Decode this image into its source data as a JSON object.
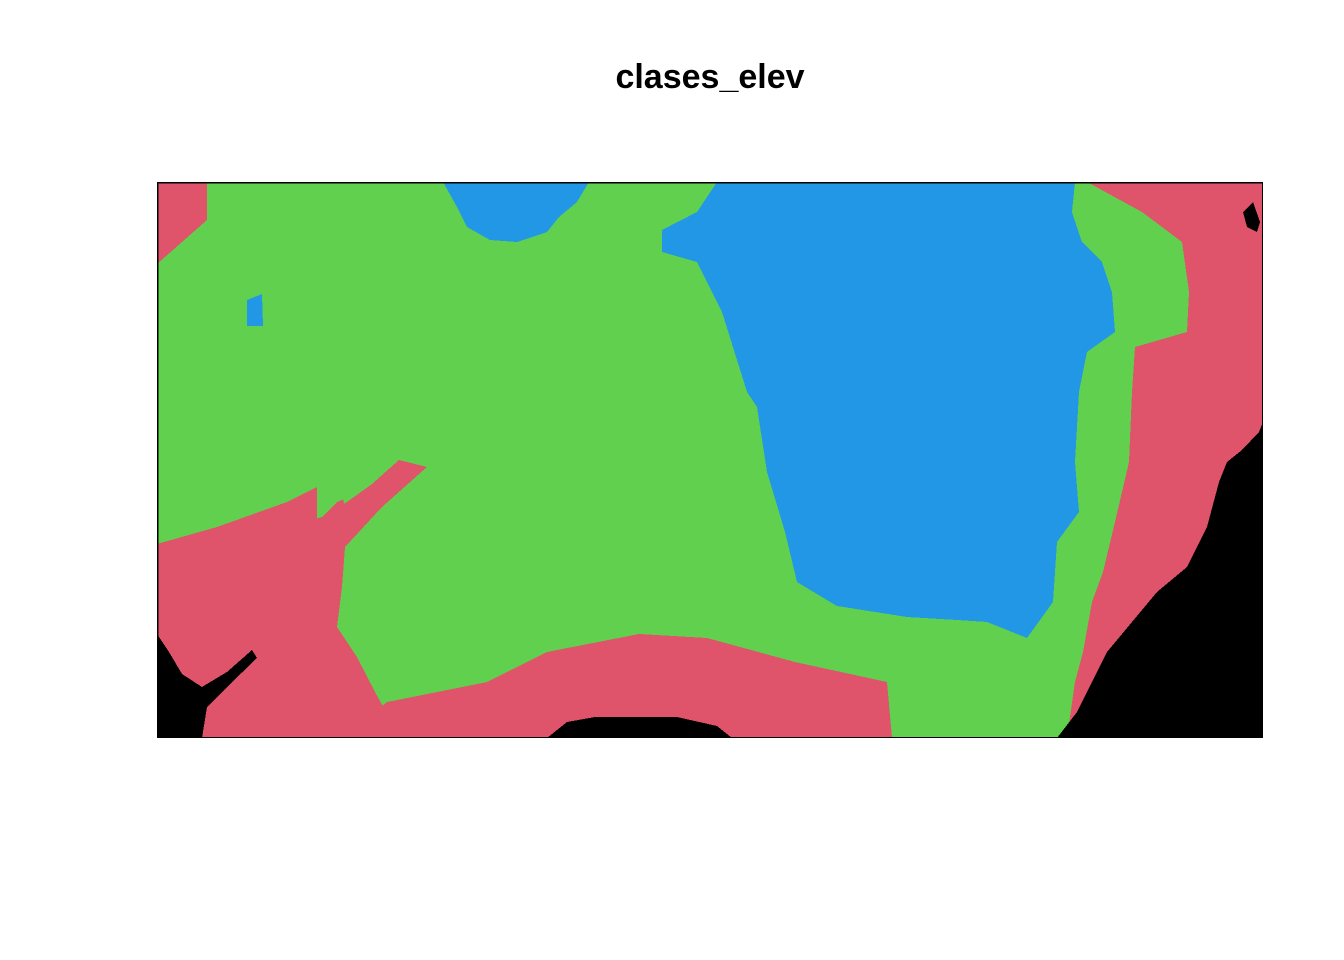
{
  "title": "clases_elev",
  "map": {
    "type": "classified-raster",
    "legend": "none",
    "axes": "none",
    "class_colors": {
      "black": "#000000",
      "red": "#DF536B",
      "green": "#61D04F",
      "blue": "#2297E6"
    },
    "background_class": "red"
  }
}
